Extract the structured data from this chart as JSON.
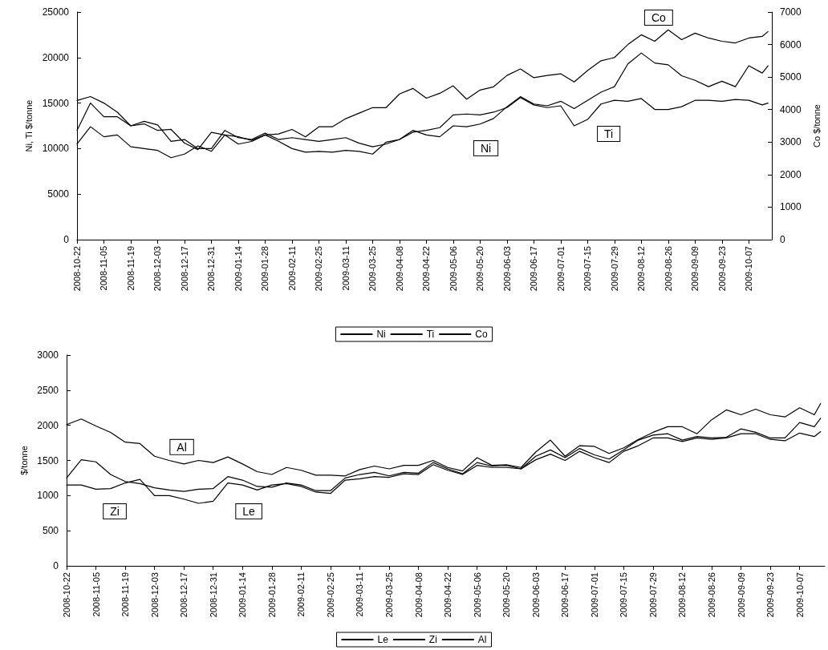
{
  "chart_data": [
    {
      "type": "line",
      "ylabel": "Ni, Ti $/tonne",
      "y2label": "Co $/tonne",
      "marker": "none",
      "line_style": "solid",
      "grid": false,
      "legend": "bottom",
      "x": [
        "2008-10-22",
        "2008-10-29",
        "2008-11-05",
        "2008-11-12",
        "2008-11-19",
        "2008-11-26",
        "2008-12-03",
        "2008-12-10",
        "2008-12-17",
        "2008-12-24",
        "2008-12-31",
        "2009-01-07",
        "2009-01-14",
        "2009-01-21",
        "2009-01-28",
        "2009-02-04",
        "2009-02-11",
        "2009-02-18",
        "2009-02-25",
        "2009-03-04",
        "2009-03-11",
        "2009-03-18",
        "2009-03-25",
        "2009-04-01",
        "2009-04-08",
        "2009-04-15",
        "2009-04-22",
        "2009-04-29",
        "2009-05-06",
        "2009-05-13",
        "2009-05-20",
        "2009-05-27",
        "2009-06-03",
        "2009-06-10",
        "2009-06-17",
        "2009-06-24",
        "2009-07-01",
        "2009-07-08",
        "2009-07-15",
        "2009-07-22",
        "2009-07-29",
        "2009-08-05",
        "2009-08-12",
        "2009-08-19",
        "2009-08-26",
        "2009-09-02",
        "2009-09-09",
        "2009-09-16",
        "2009-09-23",
        "2009-09-30",
        "2009-10-07",
        "2009-10-14",
        "2009-10-17"
      ],
      "xlim": [
        "2008-10-22",
        "2009-10-19"
      ],
      "xticks": [
        "2008-10-22",
        "2008-11-05",
        "2008-11-19",
        "2008-12-03",
        "2008-12-17",
        "2008-12-31",
        "2009-01-14",
        "2009-01-28",
        "2009-02-11",
        "2009-02-25",
        "2009-03-11",
        "2009-03-25",
        "2009-04-08",
        "2009-04-22",
        "2009-05-06",
        "2009-05-20",
        "2009-06-03",
        "2009-06-17",
        "2009-07-01",
        "2009-07-15",
        "2009-07-29",
        "2009-08-12",
        "2009-08-26",
        "2009-09-09",
        "2009-09-23",
        "2009-10-07"
      ],
      "ylim": [
        0,
        25000
      ],
      "yticks": [
        0,
        5000,
        10000,
        15000,
        20000,
        25000
      ],
      "y2lim": [
        0,
        7000
      ],
      "y2ticks": [
        0,
        1000,
        2000,
        3000,
        4000,
        5000,
        6000,
        7000
      ],
      "series": [
        {
          "name": "Ni",
          "color": "#000000",
          "values": [
            12000,
            15000,
            13500,
            13500,
            12500,
            13000,
            12600,
            10800,
            11000,
            10000,
            10000,
            12000,
            11200,
            11000,
            11700,
            11000,
            11200,
            11000,
            10800,
            11000,
            11200,
            10600,
            10200,
            10500,
            11000,
            12000,
            11500,
            11300,
            12500,
            12400,
            12700,
            13300,
            14600,
            15700,
            14900,
            14700,
            15200,
            14400,
            15300,
            16200,
            16800,
            19300,
            20500,
            19400,
            19200,
            18000,
            17500,
            16800,
            17400,
            16800,
            19100,
            18300,
            19100
          ]
        },
        {
          "name": "Ti",
          "color": "#000000",
          "values": [
            10500,
            12400,
            11300,
            11500,
            10200,
            10000,
            9800,
            9000,
            9400,
            10300,
            9700,
            11500,
            11300,
            10900,
            11500,
            10800,
            10000,
            9600,
            9700,
            9600,
            9800,
            9700,
            9400,
            10700,
            11000,
            11800,
            12000,
            12300,
            13700,
            13800,
            13700,
            14000,
            14500,
            15600,
            14800,
            14500,
            14700,
            12500,
            13200,
            14900,
            15300,
            15200,
            15500,
            14300,
            14300,
            14600,
            15300,
            15300,
            15200,
            15400,
            15300,
            14800,
            15000
          ]
        },
        {
          "name": "Co",
          "color": "#000000",
          "axis": "y2",
          "values": [
            4280,
            4400,
            4200,
            3920,
            3500,
            3560,
            3360,
            3390,
            2970,
            2770,
            3300,
            3220,
            2940,
            3020,
            3220,
            3250,
            3390,
            3160,
            3470,
            3470,
            3720,
            3890,
            4060,
            4060,
            4480,
            4650,
            4350,
            4500,
            4730,
            4320,
            4600,
            4700,
            5050,
            5250,
            4980,
            5050,
            5100,
            4850,
            5200,
            5500,
            5600,
            6000,
            6300,
            6100,
            6450,
            6150,
            6350,
            6200,
            6100,
            6050,
            6200,
            6250,
            6400
          ]
        }
      ],
      "annotations": [
        {
          "text": "Co",
          "x": "2009-08-21",
          "y": 24380
        },
        {
          "text": "Ni",
          "x": "2009-05-23",
          "y": 10030
        },
        {
          "text": "Ti",
          "x": "2009-07-26",
          "y": 11620
        }
      ]
    },
    {
      "type": "line",
      "ylabel": "$/tonne",
      "marker": "none",
      "line_style": "solid",
      "grid": false,
      "legend": "bottom",
      "x": [
        "2008-10-22",
        "2008-10-29",
        "2008-11-05",
        "2008-11-12",
        "2008-11-19",
        "2008-11-26",
        "2008-12-03",
        "2008-12-10",
        "2008-12-17",
        "2008-12-24",
        "2008-12-31",
        "2009-01-07",
        "2009-01-14",
        "2009-01-21",
        "2009-01-28",
        "2009-02-04",
        "2009-02-11",
        "2009-02-18",
        "2009-02-25",
        "2009-03-04",
        "2009-03-11",
        "2009-03-18",
        "2009-03-25",
        "2009-04-01",
        "2009-04-08",
        "2009-04-15",
        "2009-04-22",
        "2009-04-29",
        "2009-05-06",
        "2009-05-13",
        "2009-05-20",
        "2009-05-27",
        "2009-06-03",
        "2009-06-10",
        "2009-06-17",
        "2009-06-24",
        "2009-07-01",
        "2009-07-08",
        "2009-07-15",
        "2009-07-22",
        "2009-07-29",
        "2009-08-05",
        "2009-08-12",
        "2009-08-19",
        "2009-08-26",
        "2009-09-02",
        "2009-09-09",
        "2009-09-16",
        "2009-09-23",
        "2009-09-30",
        "2009-10-07",
        "2009-10-14",
        "2009-10-17"
      ],
      "xlim": [
        "2008-10-22",
        "2009-10-19"
      ],
      "xticks": [
        "2008-10-22",
        "2008-11-05",
        "2008-11-19",
        "2008-12-03",
        "2008-12-17",
        "2008-12-31",
        "2009-01-14",
        "2009-01-28",
        "2009-02-11",
        "2009-02-25",
        "2009-03-11",
        "2009-03-25",
        "2009-04-08",
        "2009-04-22",
        "2009-05-06",
        "2009-05-20",
        "2009-06-03",
        "2009-06-17",
        "2009-07-01",
        "2009-07-15",
        "2009-07-29",
        "2009-08-12",
        "2009-08-26",
        "2009-09-09",
        "2009-09-23",
        "2009-10-07"
      ],
      "ylim": [
        0,
        3000
      ],
      "yticks": [
        0,
        500,
        1000,
        1500,
        2000,
        2500,
        3000
      ],
      "series": [
        {
          "name": "Le",
          "color": "#000000",
          "values": [
            1250,
            1510,
            1480,
            1300,
            1200,
            1170,
            1110,
            1080,
            1060,
            1090,
            1100,
            1270,
            1220,
            1130,
            1120,
            1180,
            1150,
            1070,
            1070,
            1250,
            1300,
            1330,
            1280,
            1330,
            1320,
            1470,
            1380,
            1310,
            1470,
            1420,
            1430,
            1380,
            1560,
            1650,
            1540,
            1670,
            1580,
            1520,
            1650,
            1790,
            1860,
            1880,
            1790,
            1840,
            1820,
            1830,
            1950,
            1900,
            1820,
            1820,
            2040,
            1980,
            2100
          ]
        },
        {
          "name": "Zi",
          "color": "#000000",
          "values": [
            1150,
            1150,
            1090,
            1100,
            1180,
            1230,
            1000,
            1000,
            950,
            890,
            920,
            1180,
            1150,
            1080,
            1150,
            1170,
            1130,
            1050,
            1030,
            1220,
            1240,
            1270,
            1260,
            1310,
            1300,
            1440,
            1360,
            1300,
            1430,
            1400,
            1400,
            1380,
            1510,
            1590,
            1500,
            1630,
            1540,
            1470,
            1630,
            1710,
            1820,
            1820,
            1770,
            1820,
            1800,
            1820,
            1880,
            1880,
            1800,
            1780,
            1890,
            1840,
            1910
          ]
        },
        {
          "name": "Al",
          "color": "#000000",
          "values": [
            2010,
            2090,
            1990,
            1900,
            1760,
            1740,
            1560,
            1500,
            1450,
            1500,
            1470,
            1550,
            1450,
            1340,
            1300,
            1400,
            1360,
            1290,
            1290,
            1280,
            1370,
            1420,
            1380,
            1430,
            1430,
            1500,
            1400,
            1350,
            1540,
            1430,
            1440,
            1400,
            1620,
            1790,
            1560,
            1710,
            1700,
            1600,
            1680,
            1800,
            1900,
            1980,
            1980,
            1880,
            2080,
            2220,
            2150,
            2230,
            2150,
            2120,
            2250,
            2150,
            2310
          ]
        }
      ],
      "annotations": [
        {
          "text": "Al",
          "x": "2008-12-16",
          "y": 1690
        },
        {
          "text": "Zi",
          "x": "2008-11-14",
          "y": 775
        },
        {
          "text": "Le",
          "x": "2009-01-17",
          "y": 775
        }
      ]
    }
  ]
}
